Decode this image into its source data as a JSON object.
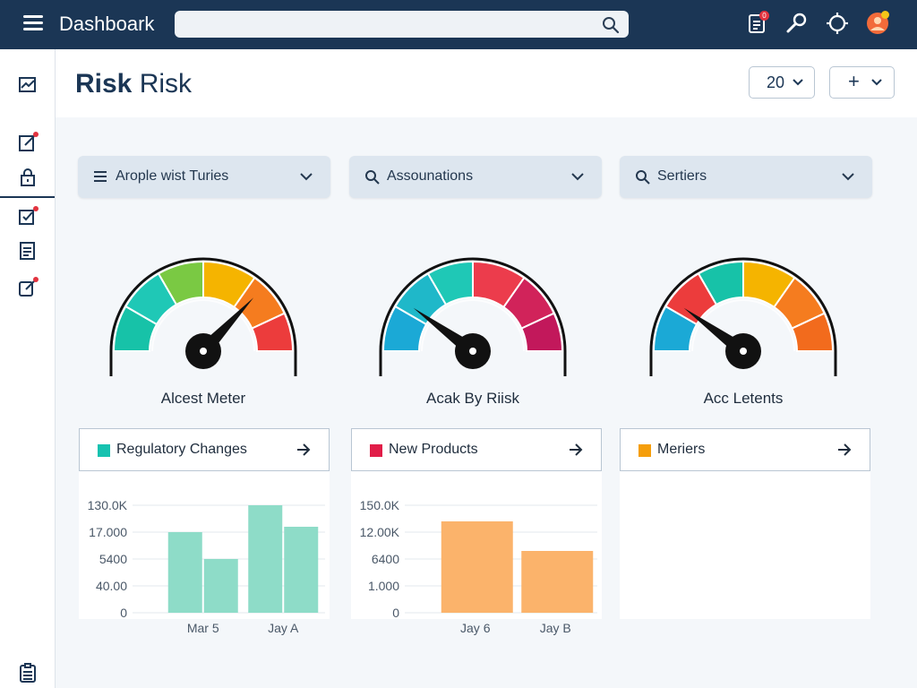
{
  "app": {
    "title": "Dashboark",
    "search_placeholder": ""
  },
  "header": {
    "title_bold": "Risk",
    "title_rest": " Risk",
    "count_select": "20",
    "add_button": "+"
  },
  "notifications": {
    "badge": "0"
  },
  "filters": [
    {
      "label": "Arople wist Turies",
      "icon": "menu-icon"
    },
    {
      "label": "Assounations",
      "icon": "search-icon"
    },
    {
      "label": "Sertiers",
      "icon": "search-icon"
    }
  ],
  "gauges": [
    {
      "caption": "Alcest Meter",
      "value": 0.74
    },
    {
      "caption": "Acak By Riisk",
      "value": 0.2
    },
    {
      "caption": "Acc Letents",
      "value": 0.2
    }
  ],
  "cards": [
    {
      "label": "Regulatory Changes",
      "color": "#17c2b0"
    },
    {
      "label": "New Products",
      "color": "#e11d48"
    },
    {
      "label": "Meriers",
      "color": "#f59e0b"
    }
  ],
  "chart_data": [
    {
      "type": "bar",
      "title": "Regulatory Changes",
      "y_tick_labels": [
        "130.0K",
        "17.000",
        "5400",
        "40.00",
        "0"
      ],
      "categories": [
        "Mar 5",
        "Jay A"
      ],
      "series": [
        {
          "values": [
            3,
            4
          ]
        },
        {
          "values": [
            2,
            3.2
          ]
        }
      ],
      "ylim": [
        0,
        4
      ],
      "color": "#8edcc8",
      "grid": true
    },
    {
      "type": "bar",
      "title": "New Products",
      "y_tick_labels": [
        "150.0K",
        "12.00K",
        "6400",
        "1.000",
        "0"
      ],
      "categories": [
        "Jay 6",
        "Jay B"
      ],
      "series": [
        {
          "values": [
            3.4,
            2.3
          ]
        }
      ],
      "ylim": [
        0,
        4
      ],
      "color": "#fbb36b",
      "grid": true
    }
  ]
}
